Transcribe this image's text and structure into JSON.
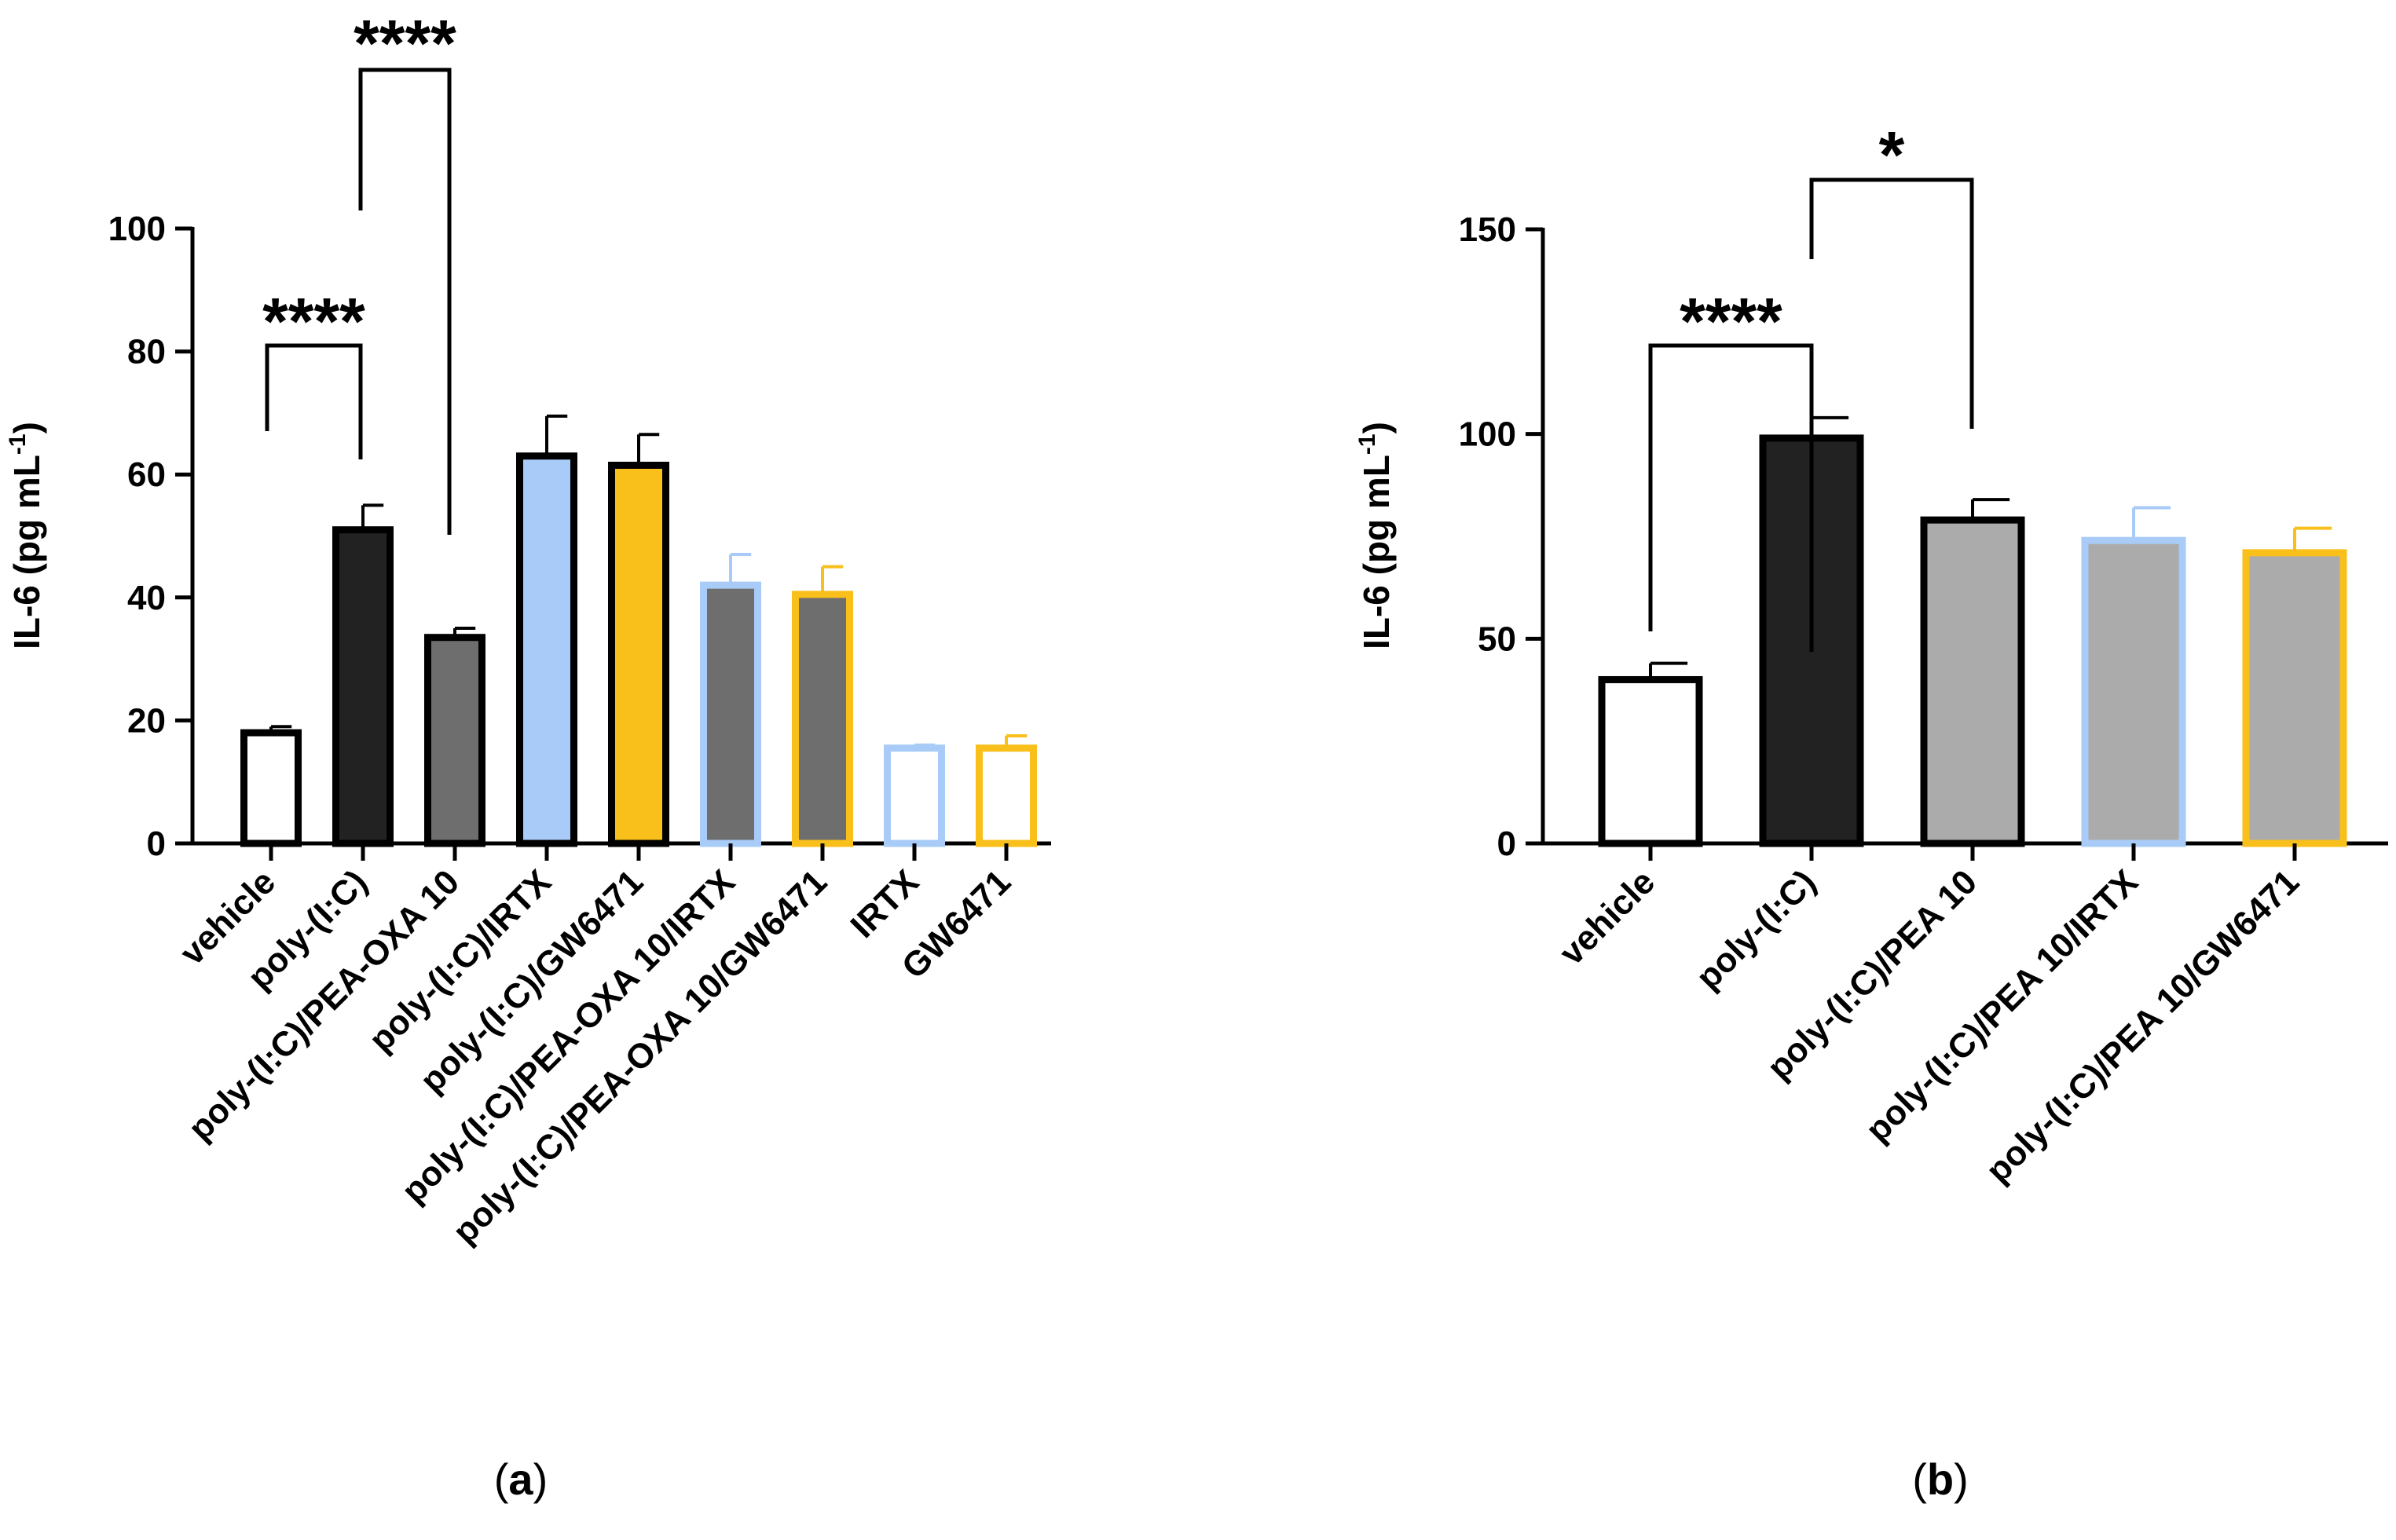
{
  "chart_data": [
    {
      "type": "bar",
      "panel_label": "a",
      "ylabel": "IL-6 (pg mL",
      "ylabel_sup": "-1",
      "ylabel_close": ")",
      "ylim": [
        0,
        100
      ],
      "yticks": [
        0,
        20,
        40,
        60,
        80,
        100
      ],
      "categories": [
        "vehicle",
        "poly-(I:C)",
        "poly-(I:C)/PEA-OXA 10",
        "poly-(I:C)/IRTX",
        "poly-(I:C)/GW6471",
        "poly-(I:C)/PEA-OXA 10/IRTX",
        "poly-(I:C)/PEA-OXA 10/GW6471",
        "IRTX",
        "GW6471"
      ],
      "values": [
        18,
        51,
        33.5,
        63,
        61.5,
        42,
        40.5,
        15.5,
        15.5
      ],
      "errors": [
        1,
        4,
        1.5,
        6.5,
        5,
        5,
        4.5,
        0.5,
        2
      ],
      "fill_colors": [
        "#ffffff",
        "#222222",
        "#6e6e6e",
        "#a8cbf7",
        "#f9bf1a",
        "#6e6e6e",
        "#6e6e6e",
        "#ffffff",
        "#ffffff"
      ],
      "stroke_colors": [
        "#000000",
        "#000000",
        "#000000",
        "#000000",
        "#000000",
        "#a8cbf7",
        "#f9bf1a",
        "#a8cbf7",
        "#f9bf1a"
      ],
      "significance": [
        {
          "from": 0,
          "to": 1,
          "label": "****"
        },
        {
          "from": 1,
          "to": 2,
          "label": "****"
        }
      ]
    },
    {
      "type": "bar",
      "panel_label": "b",
      "ylabel": "IL-6 (pg mL",
      "ylabel_sup": "-1",
      "ylabel_close": ")",
      "ylim": [
        0,
        150
      ],
      "yticks": [
        0,
        50,
        100,
        150
      ],
      "categories": [
        "vehicle",
        "poly-(I:C)",
        "poly-(I:C)/PEA 10",
        "poly-(I:C)/PEA 10/IRTX",
        "poly-(I:C)/PEA 10/GW6471"
      ],
      "values": [
        40,
        99,
        79,
        74,
        71
      ],
      "errors": [
        4,
        5,
        5,
        8,
        6
      ],
      "fill_colors": [
        "#ffffff",
        "#222222",
        "#ababab",
        "#ababab",
        "#ababab"
      ],
      "stroke_colors": [
        "#000000",
        "#000000",
        "#000000",
        "#a8cbf7",
        "#f9bf1a"
      ],
      "significance": [
        {
          "from": 0,
          "to": 1,
          "label": "****"
        },
        {
          "from": 1,
          "to": 2,
          "label": "*"
        }
      ]
    }
  ]
}
